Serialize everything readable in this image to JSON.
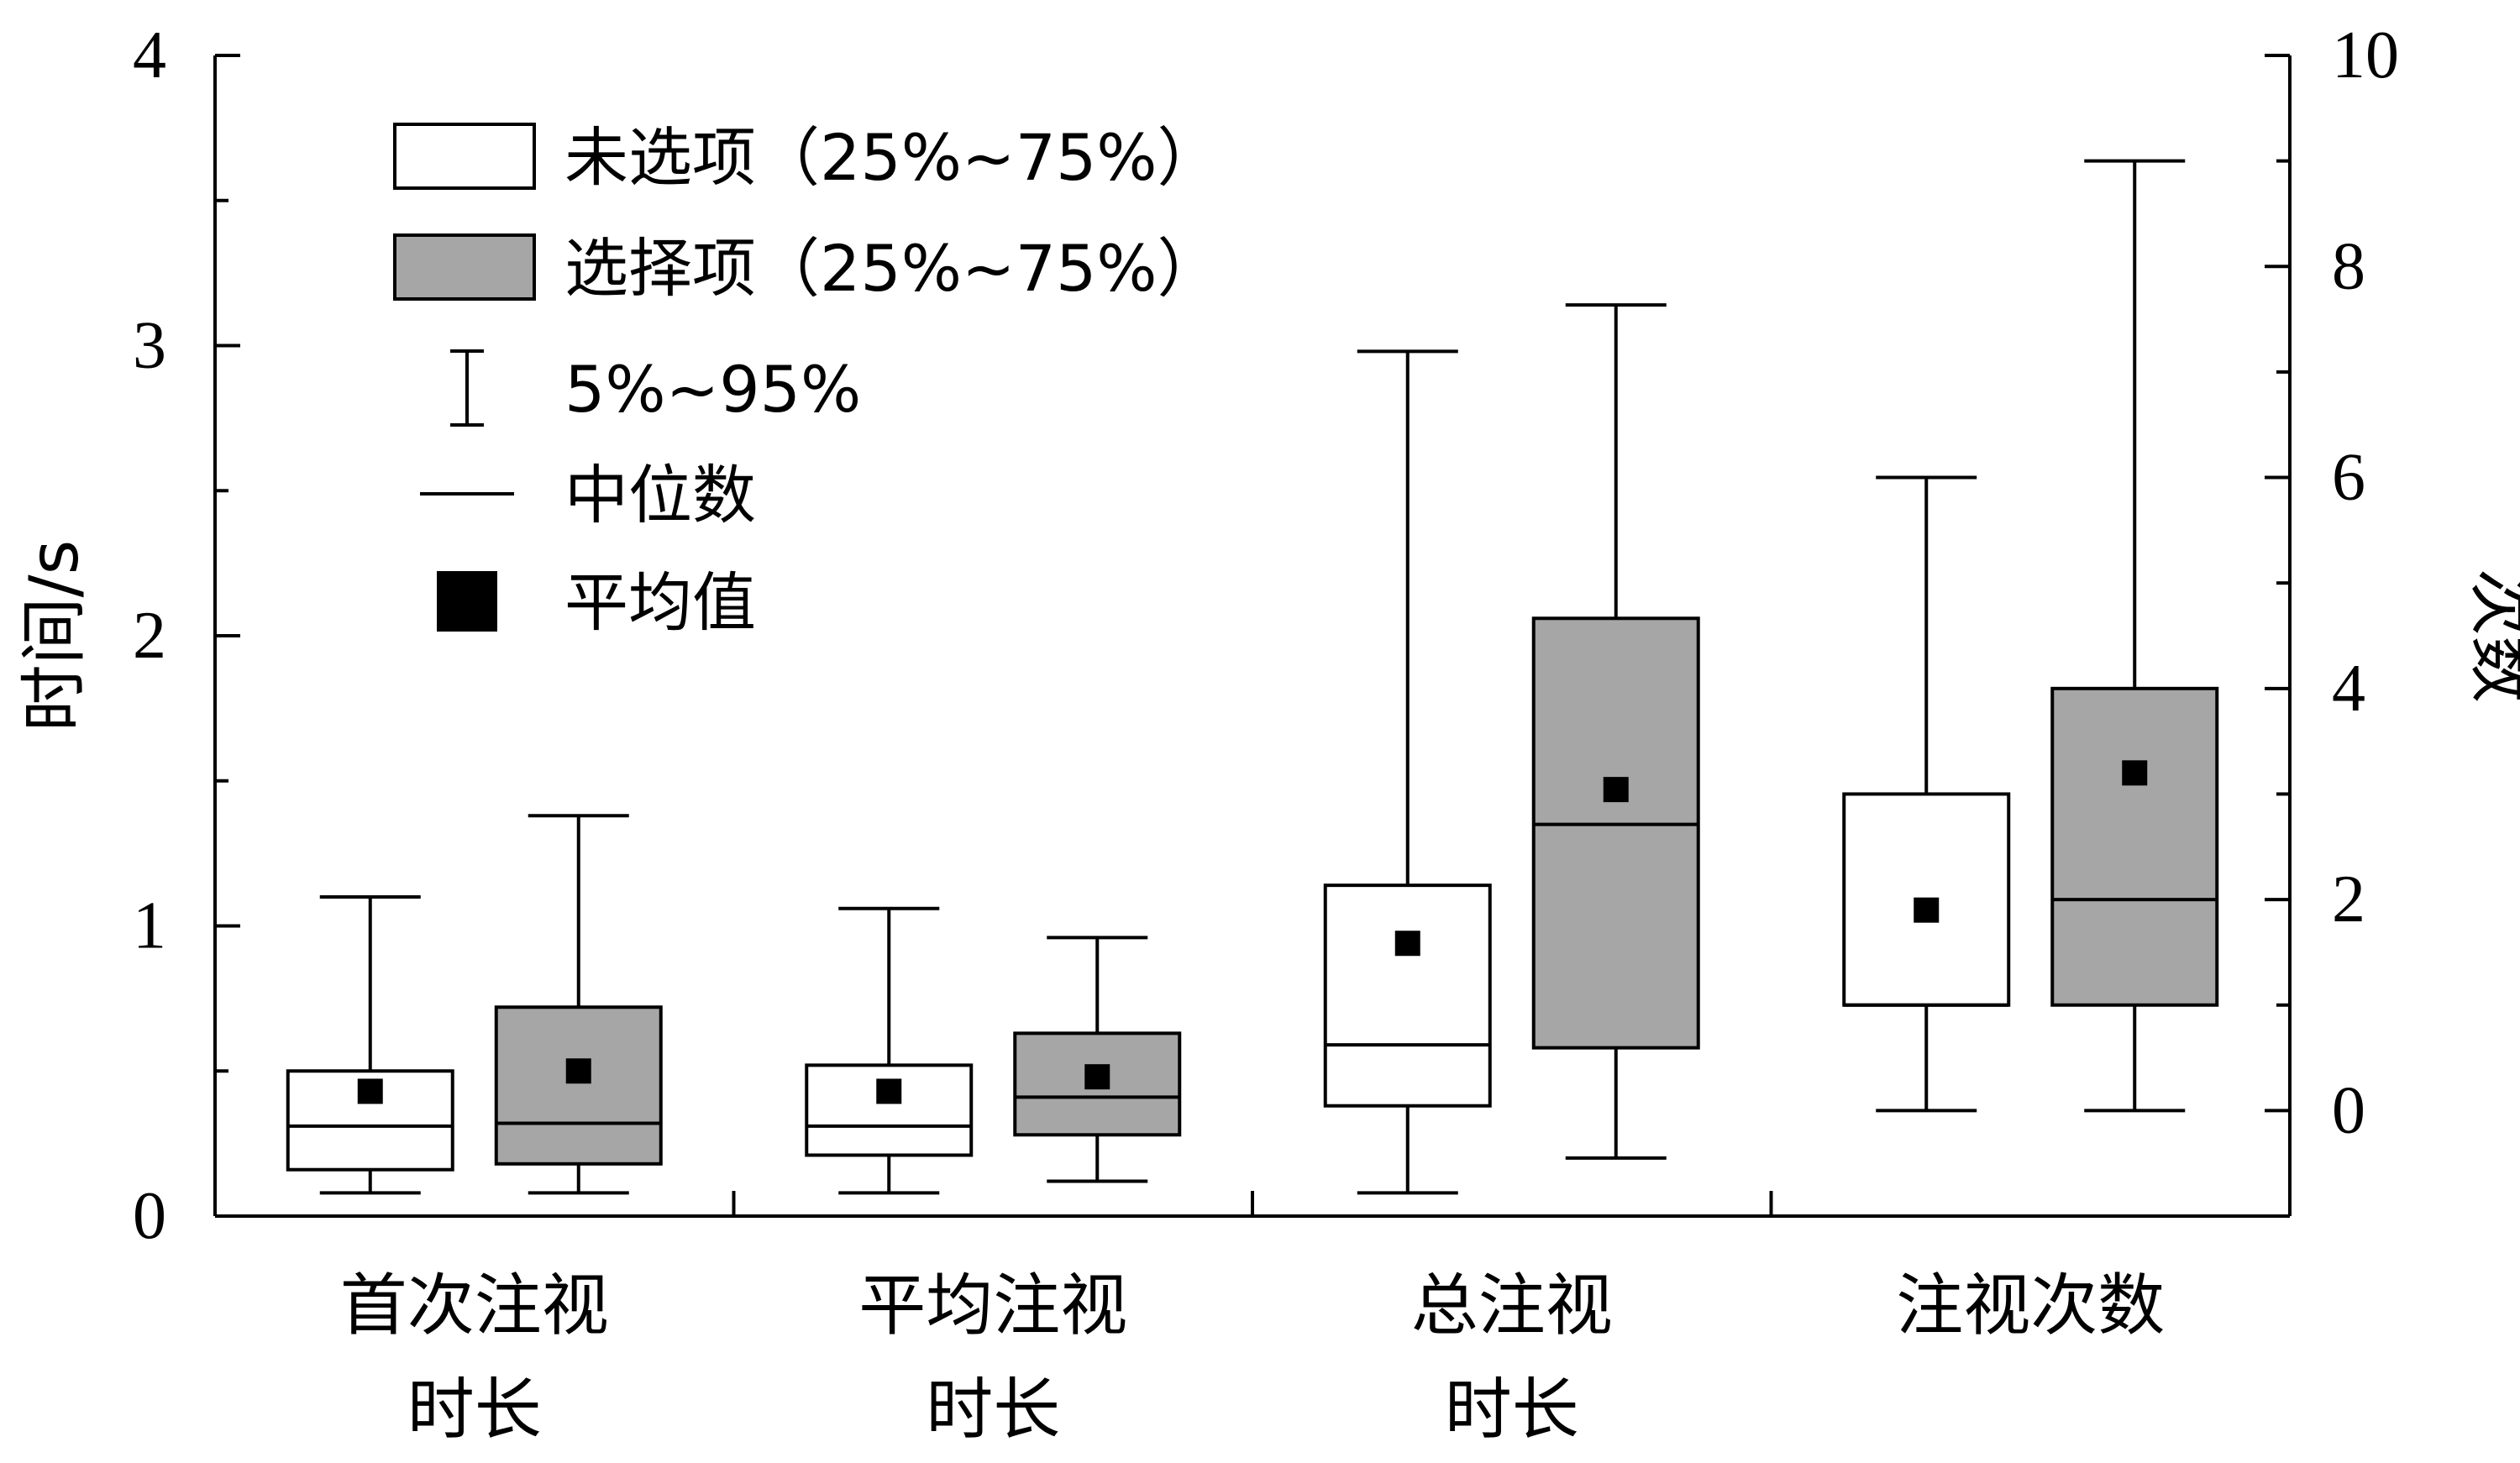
{
  "chart_data": {
    "type": "boxplot",
    "y_left": {
      "label": "时间/s",
      "range": [
        0,
        4
      ],
      "ticks": [
        "0",
        "1",
        "2",
        "3",
        "4"
      ],
      "minor_step": 0.5
    },
    "y_right": {
      "label": "次数",
      "range": [
        -1,
        10
      ],
      "ticks": [
        "0",
        "2",
        "4",
        "6",
        "8",
        "10"
      ],
      "minor_step": 1
    },
    "groups": [
      {
        "label_lines": [
          "首次注视",
          "时长"
        ],
        "axis": "left"
      },
      {
        "label_lines": [
          "平均注视",
          "时长"
        ],
        "axis": "left"
      },
      {
        "label_lines": [
          "总注视",
          "时长"
        ],
        "axis": "left"
      },
      {
        "label_lines": [
          "注视次数"
        ],
        "axis": "right"
      }
    ],
    "series": [
      {
        "name": "未选项（25%~75%）",
        "fill": "#ffffff",
        "boxes": [
          {
            "p5": 0.08,
            "q1": 0.16,
            "median": 0.31,
            "q3": 0.5,
            "p95": 1.1,
            "mean": 0.43
          },
          {
            "p5": 0.08,
            "q1": 0.21,
            "median": 0.31,
            "q3": 0.52,
            "p95": 1.06,
            "mean": 0.43
          },
          {
            "p5": 0.08,
            "q1": 0.38,
            "median": 0.59,
            "q3": 1.14,
            "p95": 2.98,
            "mean": 0.94
          },
          {
            "p5": 0.0,
            "q1": 1.0,
            "median": 1.0,
            "q3": 3.0,
            "p95": 6.0,
            "mean": 1.9
          }
        ]
      },
      {
        "name": "选择项（25%~75%）",
        "fill": "#a6a6a6",
        "boxes": [
          {
            "p5": 0.08,
            "q1": 0.18,
            "median": 0.32,
            "q3": 0.72,
            "p95": 1.38,
            "mean": 0.5
          },
          {
            "p5": 0.12,
            "q1": 0.28,
            "median": 0.41,
            "q3": 0.63,
            "p95": 0.96,
            "mean": 0.48
          },
          {
            "p5": 0.2,
            "q1": 0.58,
            "median": 1.35,
            "q3": 2.06,
            "p95": 3.14,
            "mean": 1.47
          },
          {
            "p5": 0.0,
            "q1": 1.0,
            "median": 2.0,
            "q3": 4.0,
            "p95": 9.0,
            "mean": 3.2
          }
        ]
      }
    ],
    "legend": {
      "position": "top-left",
      "entries": [
        {
          "symbol": "box-white",
          "label": "未选项（25%~75%）"
        },
        {
          "symbol": "box-gray",
          "label": "选择项（25%~75%）"
        },
        {
          "symbol": "whisker",
          "label": "5%~95%"
        },
        {
          "symbol": "median-line",
          "label": "中位数"
        },
        {
          "symbol": "mean-square",
          "label": "平均值"
        }
      ]
    }
  }
}
